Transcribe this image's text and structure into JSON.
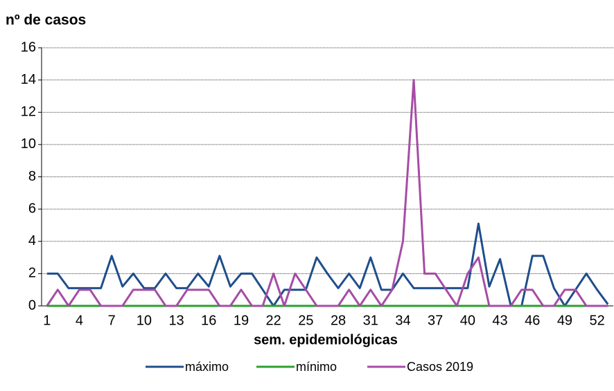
{
  "chart_data": {
    "type": "line",
    "y_label": "nº de casos",
    "x_label": "sem. epidemiológicas",
    "categories": [
      1,
      null,
      null,
      4,
      null,
      null,
      7,
      null,
      null,
      10,
      null,
      null,
      13,
      null,
      null,
      16,
      null,
      null,
      19,
      null,
      null,
      22,
      null,
      null,
      25,
      null,
      null,
      28,
      null,
      null,
      31,
      null,
      null,
      34,
      null,
      null,
      37,
      null,
      null,
      40,
      null,
      null,
      43,
      null,
      null,
      46,
      null,
      null,
      49,
      null,
      null,
      52,
      null
    ],
    "series": [
      {
        "name": "máximo",
        "color": "#1f4e8c",
        "values": [
          2,
          2,
          1.1,
          1.1,
          1.1,
          1.1,
          3.1,
          1.2,
          2,
          1.1,
          1.1,
          2,
          1.1,
          1.1,
          2,
          1.2,
          3.1,
          1.2,
          2,
          2,
          1,
          0,
          1,
          1,
          1,
          3,
          2,
          1.1,
          2,
          1.1,
          3,
          1,
          1,
          2,
          1.1,
          1.1,
          1.1,
          1.1,
          1.1,
          1.1,
          5.1,
          1.2,
          2.9,
          0,
          0,
          3.1,
          3.1,
          1.1,
          0,
          1,
          2,
          1,
          0.1
        ]
      },
      {
        "name": "mínimo",
        "color": "#2ca02c",
        "values": [
          0,
          0,
          0,
          0,
          0,
          0,
          0,
          0,
          0,
          0,
          0,
          0,
          0,
          0,
          0,
          0,
          0,
          0,
          0,
          0,
          0,
          0,
          0,
          0,
          0,
          0,
          0,
          0,
          0,
          0,
          0,
          0,
          0,
          0,
          0,
          0,
          0,
          0,
          0,
          0,
          0,
          0,
          0,
          0,
          0,
          0,
          0,
          0,
          0,
          0,
          0,
          0,
          0
        ]
      },
      {
        "name": "Casos 2019",
        "color": "#a64ca6",
        "values": [
          0,
          1,
          0,
          1,
          1,
          0,
          0,
          0,
          1,
          1,
          1,
          0,
          0,
          1,
          1,
          1,
          0,
          0,
          1,
          0,
          0,
          2,
          0,
          2,
          1,
          0,
          0,
          0,
          1,
          0,
          1,
          0,
          1,
          4,
          14,
          2,
          2,
          1,
          0,
          2,
          3,
          0,
          0,
          0,
          1,
          1,
          0,
          0,
          1,
          1,
          0,
          0,
          0
        ]
      }
    ],
    "ylim": [
      0,
      16
    ],
    "yticks": [
      0,
      2,
      4,
      6,
      8,
      10,
      12,
      14,
      16
    ],
    "grid": true
  }
}
